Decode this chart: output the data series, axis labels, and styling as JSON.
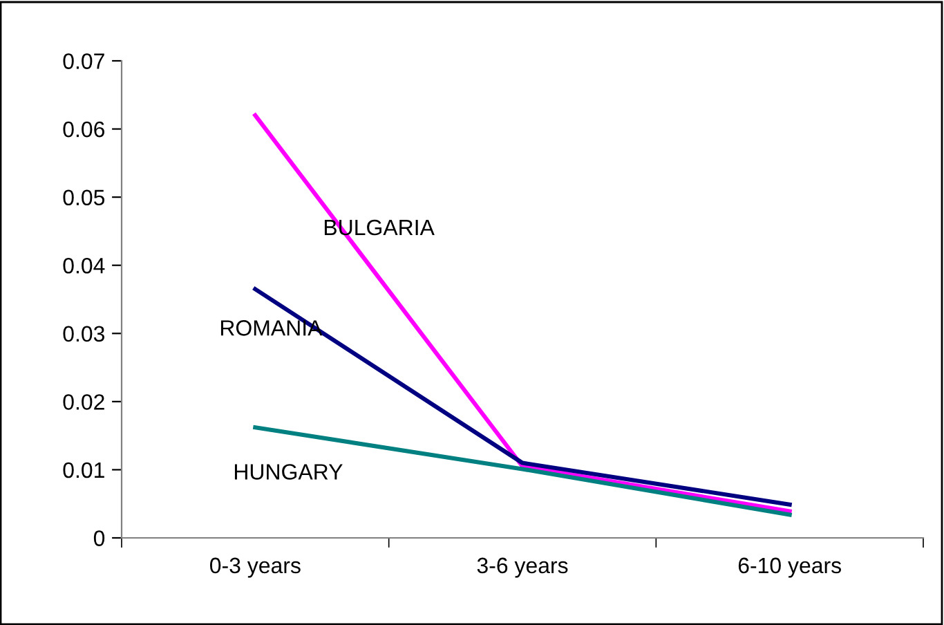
{
  "chart_data": {
    "type": "line",
    "categories": [
      "0-3 years",
      "3-6 years",
      "6-10 years"
    ],
    "series": [
      {
        "name": "BULGARIA",
        "color": "#ff00ff",
        "values": [
          0.062,
          0.0105,
          0.0039
        ]
      },
      {
        "name": "ROMANIA",
        "color": "#000080",
        "values": [
          0.0365,
          0.011,
          0.0049
        ]
      },
      {
        "name": "HUNGARY",
        "color": "#008080",
        "values": [
          0.0162,
          0.0101,
          0.0034
        ]
      }
    ],
    "ylim": [
      0,
      0.07
    ],
    "yticks": [
      {
        "value": 0,
        "label": "0"
      },
      0.01,
      0.02,
      0.03,
      0.04,
      0.05,
      0.06,
      0.07
    ],
    "grid": false,
    "legend": false,
    "marker": "none",
    "line_style": "solid"
  }
}
